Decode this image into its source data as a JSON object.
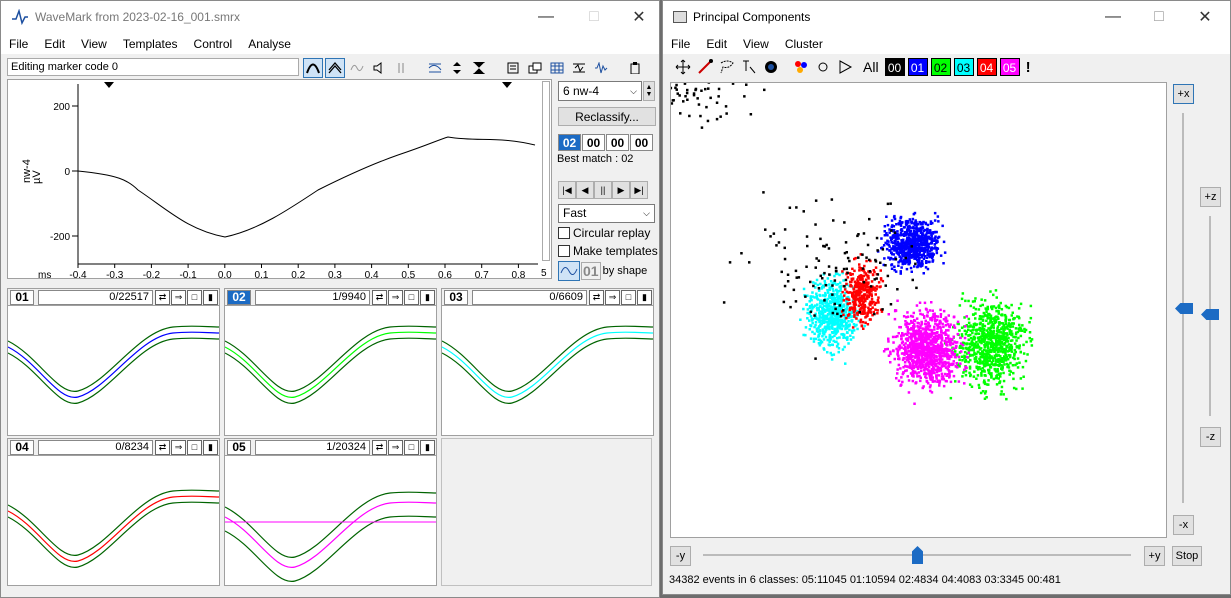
{
  "wavemark": {
    "title": "WaveMark from 2023-02-16_001.smrx",
    "menu": [
      "File",
      "Edit",
      "View",
      "Templates",
      "Control",
      "Analyse"
    ],
    "status": "Editing marker code  0",
    "channel": "6 nw-4",
    "reclassify": "Reclassify...",
    "codes": [
      "02",
      "00",
      "00",
      "00"
    ],
    "best_match": "Best match : 02",
    "speed": "Fast",
    "circular_replay": "Circular replay",
    "make_templates": "Make templates",
    "by_shape": "by shape",
    "shape_code": "01",
    "wave": {
      "ylabel": "nw-4",
      "yunit": "µV",
      "xunit": "ms",
      "yticks": [
        "200",
        "0",
        "-200"
      ],
      "xticks": [
        "-0.4",
        "-0.3",
        "-0.2",
        "-0.1",
        "0.0",
        "0.1",
        "0.2",
        "0.3",
        "0.4",
        "0.5",
        "0.6",
        "0.7",
        "0.8"
      ],
      "xend": "5"
    },
    "templates": [
      {
        "num": "01",
        "count": "0/22517",
        "color": "#0000ff"
      },
      {
        "num": "02",
        "count": "1/9940",
        "color": "#00ff00",
        "selected": true
      },
      {
        "num": "03",
        "count": "0/6609",
        "color": "#00ffff"
      },
      {
        "num": "04",
        "count": "0/8234",
        "color": "#ff0000"
      },
      {
        "num": "05",
        "count": "1/20324",
        "color": "#ff00ff"
      }
    ]
  },
  "pca": {
    "title": "Principal Components",
    "menu": [
      "File",
      "Edit",
      "View",
      "Cluster"
    ],
    "all_label": "All",
    "classes": [
      {
        "code": "00",
        "bg": "#000000",
        "fg": "#ffffff"
      },
      {
        "code": "01",
        "bg": "#0000ff",
        "fg": "#ffffff"
      },
      {
        "code": "02",
        "bg": "#00ff00",
        "fg": "#000000"
      },
      {
        "code": "03",
        "bg": "#00ffff",
        "fg": "#000000"
      },
      {
        "code": "04",
        "bg": "#ff0000",
        "fg": "#ffffff"
      },
      {
        "code": "05",
        "bg": "#ff00ff",
        "fg": "#ffffff"
      }
    ],
    "bang": "!",
    "btn_px": "+x",
    "btn_pz": "+z",
    "btn_mz": "-z",
    "btn_mx": "-x",
    "btn_my": "-y",
    "btn_py": "+y",
    "btn_stop": "Stop",
    "status": "34382 events in 6 classes: 05:11045 01:10594 02:4834 04:4083 03:3345 00:481"
  }
}
